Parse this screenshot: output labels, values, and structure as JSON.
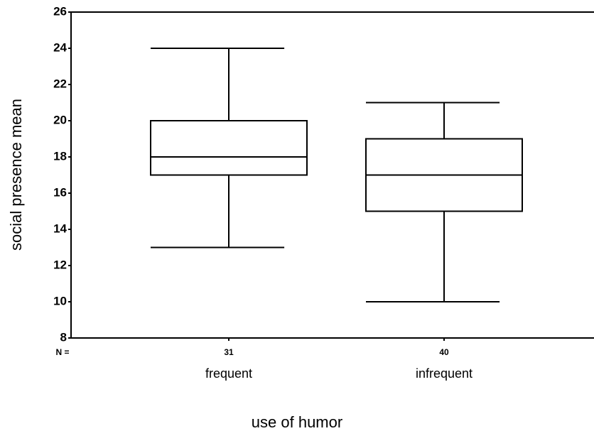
{
  "chart_data": {
    "type": "box",
    "xlabel": "use of humor",
    "ylabel": "social presence mean",
    "categories": [
      "frequent",
      "infrequent"
    ],
    "n_label": "N =",
    "n": [
      31,
      40
    ],
    "boxes": [
      {
        "min": 13,
        "q1": 17,
        "median": 18,
        "q3": 20,
        "max": 24
      },
      {
        "min": 10,
        "q1": 15,
        "median": 17,
        "q3": 19,
        "max": 21
      }
    ],
    "color": "#000000",
    "ylim": [
      8,
      26
    ],
    "yticks": [
      8,
      10,
      12,
      14,
      16,
      18,
      20,
      22,
      24,
      26
    ]
  }
}
